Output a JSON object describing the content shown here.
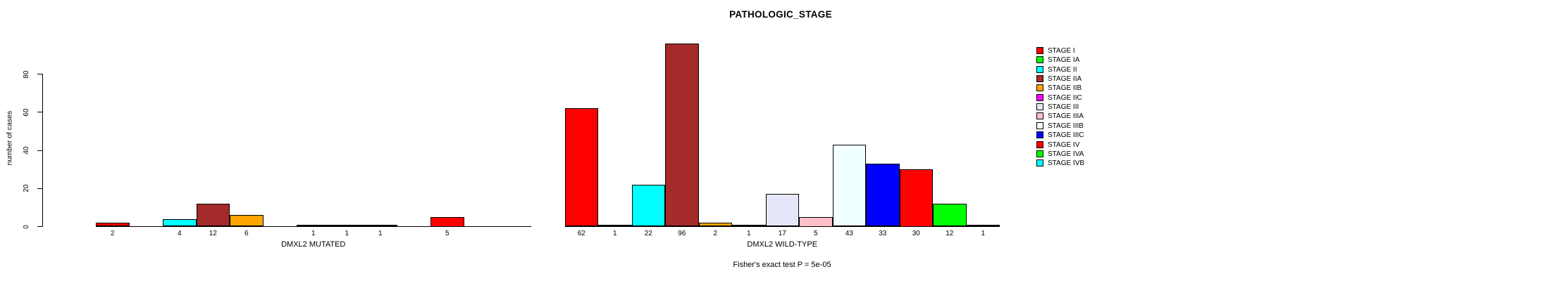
{
  "title": "PATHOLOGIC_STAGE",
  "footnote": "Fisher's exact test P = 5e-05",
  "y_axis": {
    "label": "number of cases",
    "tick_labels": [
      "0",
      "20",
      "40",
      "60",
      "80"
    ]
  },
  "chart_data": {
    "type": "bar",
    "title": "PATHOLOGIC_STAGE",
    "xlabel": "",
    "ylabel": "number of cases",
    "ylim": [
      0,
      80
    ],
    "yticks": [
      0,
      20,
      40,
      60,
      80
    ],
    "grid": false,
    "legend_position": "right",
    "categories": [
      "STAGE I",
      "STAGE IA",
      "STAGE II",
      "STAGE IIA",
      "STAGE IIB",
      "STAGE IIC",
      "STAGE III",
      "STAGE IIIA",
      "STAGE IIIB",
      "STAGE IIIC",
      "STAGE IV",
      "STAGE IVA",
      "STAGE IVB"
    ],
    "colors": [
      "#FF0000",
      "#00FF00",
      "#00FFFF",
      "#A52A2A",
      "#FFA500",
      "#FF00FF",
      "#E6E6FA",
      "#FFC0CB",
      "#F0FFFF",
      "#0000FF",
      "#FF0000",
      "#00FF00",
      "#00FFFF"
    ],
    "series": [
      {
        "name": "DMXL2 MUTATED",
        "values": [
          2,
          0,
          4,
          12,
          6,
          0,
          1,
          1,
          1,
          0,
          5,
          0,
          0
        ]
      },
      {
        "name": "DMXL2 WILD-TYPE",
        "values": [
          62,
          1,
          22,
          96,
          2,
          1,
          17,
          5,
          43,
          33,
          30,
          12,
          1
        ]
      }
    ],
    "annotation": "Fisher's exact test P = 5e-05"
  },
  "legend": {
    "entries": [
      {
        "label": "STAGE I",
        "color": "#FF0000"
      },
      {
        "label": "STAGE IA",
        "color": "#00FF00"
      },
      {
        "label": "STAGE II",
        "color": "#00FFFF"
      },
      {
        "label": "STAGE IIA",
        "color": "#A52A2A"
      },
      {
        "label": "STAGE IIB",
        "color": "#FFA500"
      },
      {
        "label": "STAGE IIC",
        "color": "#FF00FF"
      },
      {
        "label": "STAGE III",
        "color": "#E6E6FA"
      },
      {
        "label": "STAGE IIIA",
        "color": "#FFC0CB"
      },
      {
        "label": "STAGE IIIB",
        "color": "#F0FFFF"
      },
      {
        "label": "STAGE IIIC",
        "color": "#0000FF"
      },
      {
        "label": "STAGE IV",
        "color": "#FF0000"
      },
      {
        "label": "STAGE IVA",
        "color": "#00FF00"
      },
      {
        "label": "STAGE IVB",
        "color": "#00FFFF"
      }
    ]
  }
}
